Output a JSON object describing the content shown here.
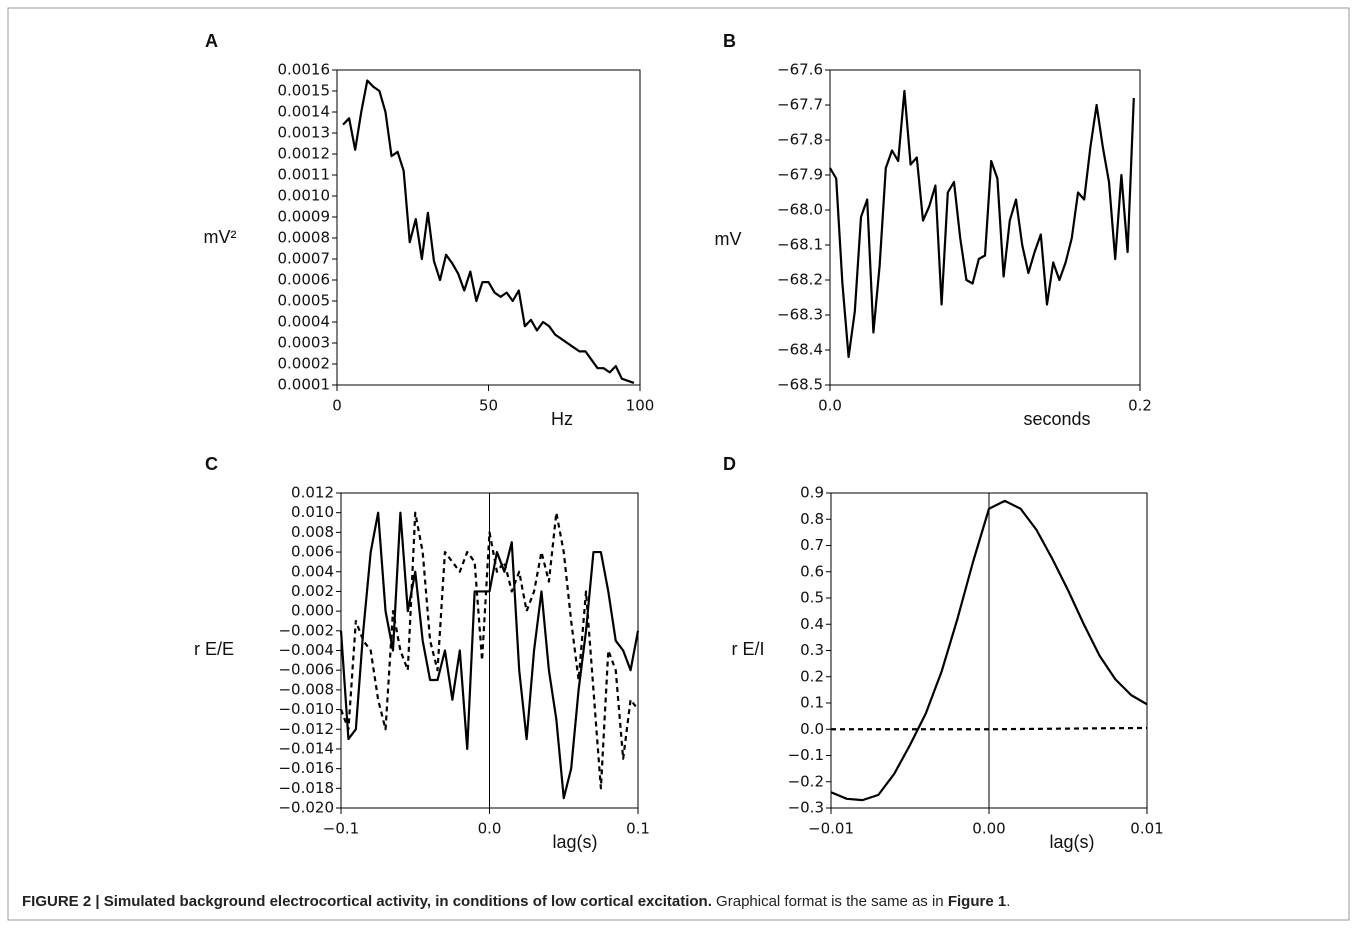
{
  "chart_data": [
    {
      "type": "line",
      "label": "A",
      "ylabel": "mV²",
      "xlabel": "Hz",
      "x": [
        2,
        4,
        6,
        8,
        10,
        12,
        14,
        16,
        18,
        20,
        22,
        24,
        26,
        28,
        30,
        32,
        34,
        36,
        38,
        40,
        42,
        44,
        46,
        48,
        50,
        52,
        54,
        56,
        58,
        60,
        62,
        64,
        66,
        68,
        70,
        72,
        74,
        76,
        78,
        80,
        82,
        84,
        86,
        88,
        90,
        92,
        94,
        96,
        98
      ],
      "series": [
        {
          "color": "#000000",
          "dashed": false,
          "values": [
            0.00134,
            0.00137,
            0.00122,
            0.0014,
            0.00155,
            0.00152,
            0.0015,
            0.0014,
            0.00119,
            0.00121,
            0.00112,
            0.00078,
            0.00089,
            0.0007,
            0.00092,
            0.00069,
            0.0006,
            0.00072,
            0.00068,
            0.00063,
            0.00055,
            0.00064,
            0.0005,
            0.00059,
            0.00059,
            0.00054,
            0.00052,
            0.00054,
            0.0005,
            0.00055,
            0.00038,
            0.00041,
            0.00036,
            0.0004,
            0.00038,
            0.00034,
            0.00032,
            0.0003,
            0.00028,
            0.00026,
            0.00026,
            0.00022,
            0.00018,
            0.00018,
            0.00016,
            0.00019,
            0.00013,
            0.00012,
            0.00011
          ]
        }
      ],
      "xlim": [
        0,
        100
      ],
      "xticks": [
        0,
        50,
        100
      ],
      "ylim": [
        0.0001,
        0.0016
      ],
      "yticks": [
        0.0001,
        0.0002,
        0.0003,
        0.0004,
        0.0005,
        0.0006,
        0.0007,
        0.0008,
        0.0009,
        {
          "value": 0.001,
          "label": "0.0010"
        },
        0.0011,
        0.0012,
        0.0013,
        0.0014,
        0.0015,
        0.0016
      ],
      "zero_line": false
    },
    {
      "type": "line",
      "label": "B",
      "ylabel": "mV",
      "xlabel": "seconds",
      "x": [
        0,
        0.004,
        0.008,
        0.012,
        0.016,
        0.02,
        0.024,
        0.028,
        0.032,
        0.036,
        0.04,
        0.044,
        0.048,
        0.052,
        0.056,
        0.06,
        0.064,
        0.068,
        0.072,
        0.076,
        0.08,
        0.084,
        0.088,
        0.092,
        0.096,
        0.1,
        0.104,
        0.108,
        0.112,
        0.116,
        0.12,
        0.124,
        0.128,
        0.132,
        0.136,
        0.14,
        0.144,
        0.148,
        0.152,
        0.156,
        0.16,
        0.164,
        0.168,
        0.172,
        0.176,
        0.18,
        0.184,
        0.188,
        0.192,
        0.196
      ],
      "series": [
        {
          "color": "#000000",
          "dashed": false,
          "values": [
            -67.88,
            -67.91,
            -68.21,
            -68.42,
            -68.29,
            -68.02,
            -67.97,
            -68.35,
            -68.16,
            -67.88,
            -67.83,
            -67.86,
            -67.66,
            -67.87,
            -67.85,
            -68.03,
            -67.99,
            -67.93,
            -68.27,
            -67.95,
            -67.92,
            -68.08,
            -68.2,
            -68.21,
            -68.14,
            -68.13,
            -67.86,
            -67.91,
            -68.19,
            -68.03,
            -67.97,
            -68.1,
            -68.18,
            -68.12,
            -68.07,
            -68.27,
            -68.15,
            -68.2,
            -68.15,
            -68.08,
            -67.95,
            -67.97,
            -67.82,
            -67.7,
            -67.82,
            -67.92,
            -68.14,
            -67.9,
            -68.12,
            -67.68
          ]
        }
      ],
      "xlim": [
        0,
        0.2
      ],
      "xticks": [
        {
          "value": 0,
          "label": "0.0"
        },
        0.2
      ],
      "ylim": [
        -68.5,
        -67.6
      ],
      "yticks": [
        {
          "value": -67.6,
          "label": "−67.6"
        },
        {
          "value": -67.7,
          "label": "−67.7"
        },
        {
          "value": -67.8,
          "label": "−67.8"
        },
        {
          "value": -67.9,
          "label": "−67.9"
        },
        {
          "value": -68,
          "label": "−68.0"
        },
        {
          "value": -68.1,
          "label": "−68.1"
        },
        {
          "value": -68.2,
          "label": "−68.2"
        },
        {
          "value": -68.3,
          "label": "−68.3"
        },
        {
          "value": -68.4,
          "label": "−68.4"
        },
        {
          "value": -68.5,
          "label": "−68.5"
        }
      ],
      "zero_line": false
    },
    {
      "type": "line",
      "label": "C",
      "ylabel": "r E/E",
      "xlabel": "lag(s)",
      "x": [
        -0.1,
        -0.095,
        -0.09,
        -0.085,
        -0.08,
        -0.075,
        -0.07,
        -0.065,
        -0.06,
        -0.055,
        -0.05,
        -0.045,
        -0.04,
        -0.035,
        -0.03,
        -0.025,
        -0.02,
        -0.015,
        -0.01,
        -0.005,
        0,
        0.005,
        0.01,
        0.015,
        0.02,
        0.025,
        0.03,
        0.035,
        0.04,
        0.045,
        0.05,
        0.055,
        0.06,
        0.065,
        0.07,
        0.075,
        0.08,
        0.085,
        0.09,
        0.095,
        0.1
      ],
      "series": [
        {
          "color": "#000000",
          "dashed": false,
          "values": [
            -0.002,
            -0.013,
            -0.012,
            -0.002,
            0.006,
            0.01,
            0,
            -0.004,
            0.01,
            0,
            0.004,
            -0.003,
            -0.007,
            -0.007,
            -0.004,
            -0.009,
            -0.004,
            -0.014,
            0.002,
            0.002,
            0.002,
            0.006,
            0.004,
            0.007,
            -0.006,
            -0.013,
            -0.004,
            0.002,
            -0.006,
            -0.011,
            -0.019,
            -0.016,
            -0.008,
            -0.002,
            0.006,
            0.006,
            0.002,
            -0.003,
            -0.004,
            -0.006,
            -0.002
          ]
        },
        {
          "color": "#000000",
          "dashed": true,
          "values": [
            -0.01,
            -0.012,
            -0.001,
            -0.003,
            -0.004,
            -0.009,
            -0.012,
            0,
            -0.004,
            -0.006,
            0.01,
            0.006,
            -0.003,
            -0.006,
            0.006,
            0.005,
            0.004,
            0.006,
            0.005,
            -0.005,
            0.008,
            0.004,
            0.005,
            0.002,
            0.004,
            0,
            0.002,
            0.006,
            0.003,
            0.01,
            0.006,
            -0.001,
            -0.007,
            0.002,
            -0.008,
            -0.018,
            -0.004,
            -0.006,
            -0.015,
            -0.009,
            -0.01
          ]
        }
      ],
      "xlim": [
        -0.1,
        0.1
      ],
      "xticks": [
        {
          "value": -0.1,
          "label": "−0.1"
        },
        {
          "value": 0,
          "label": "0.0"
        },
        0.1
      ],
      "ylim": [
        -0.02,
        0.012
      ],
      "yticks": [
        0.012,
        {
          "value": 0.01,
          "label": "0.010"
        },
        0.008,
        0.006,
        0.004,
        0.002,
        {
          "value": 0,
          "label": "0.000"
        },
        {
          "value": -0.002,
          "label": "−0.002"
        },
        {
          "value": -0.004,
          "label": "−0.004"
        },
        {
          "value": -0.006,
          "label": "−0.006"
        },
        {
          "value": -0.008,
          "label": "−0.008"
        },
        {
          "value": -0.01,
          "label": "−0.010"
        },
        {
          "value": -0.012,
          "label": "−0.012"
        },
        {
          "value": -0.014,
          "label": "−0.014"
        },
        {
          "value": -0.016,
          "label": "−0.016"
        },
        {
          "value": -0.018,
          "label": "−0.018"
        },
        {
          "value": -0.02,
          "label": "−0.020"
        }
      ],
      "zero_line": true
    },
    {
      "type": "line",
      "label": "D",
      "ylabel": "r E/I",
      "xlabel": "lag(s)",
      "x": [
        -0.01,
        -0.009,
        -0.008,
        -0.007,
        -0.006,
        -0.005,
        -0.004,
        -0.003,
        -0.002,
        -0.001,
        0,
        0.001,
        0.002,
        0.003,
        0.004,
        0.005,
        0.006,
        0.007,
        0.008,
        0.009,
        0.01
      ],
      "series": [
        {
          "color": "#000000",
          "dashed": false,
          "values": [
            -0.24,
            -0.265,
            -0.27,
            -0.25,
            -0.17,
            -0.06,
            0.06,
            0.22,
            0.42,
            0.64,
            0.84,
            0.87,
            0.84,
            0.76,
            0.65,
            0.53,
            0.4,
            0.28,
            0.19,
            0.13,
            0.095
          ]
        },
        {
          "color": "#000000",
          "dashed": true,
          "values": [
            0,
            0,
            0,
            0,
            0,
            0,
            0,
            0,
            0,
            0,
            0,
            0.0005,
            0.001,
            0.0015,
            0.002,
            0.0025,
            0.003,
            0.0035,
            0.004,
            0.0045,
            0.005
          ]
        }
      ],
      "xlim": [
        -0.01,
        0.01
      ],
      "xticks": [
        {
          "value": -0.01,
          "label": "−0.01"
        },
        {
          "value": 0,
          "label": "0.00"
        },
        0.01
      ],
      "ylim": [
        -0.3,
        0.9
      ],
      "yticks": [
        0.9,
        0.8,
        0.7,
        0.6,
        0.5,
        0.4,
        0.3,
        0.2,
        0.1,
        {
          "value": 0,
          "label": "0.0"
        },
        {
          "value": -0.1,
          "label": "−0.1"
        },
        {
          "value": -0.2,
          "label": "−0.2"
        },
        {
          "value": -0.3,
          "label": "−0.3"
        }
      ],
      "zero_line": true
    }
  ],
  "caption": {
    "bold": "FIGURE 2 | Simulated background electrocortical activity, in conditions of low cortical excitation.",
    "text": " Graphical format is the same as in ",
    "ref": "Figure 1",
    "end": "."
  }
}
